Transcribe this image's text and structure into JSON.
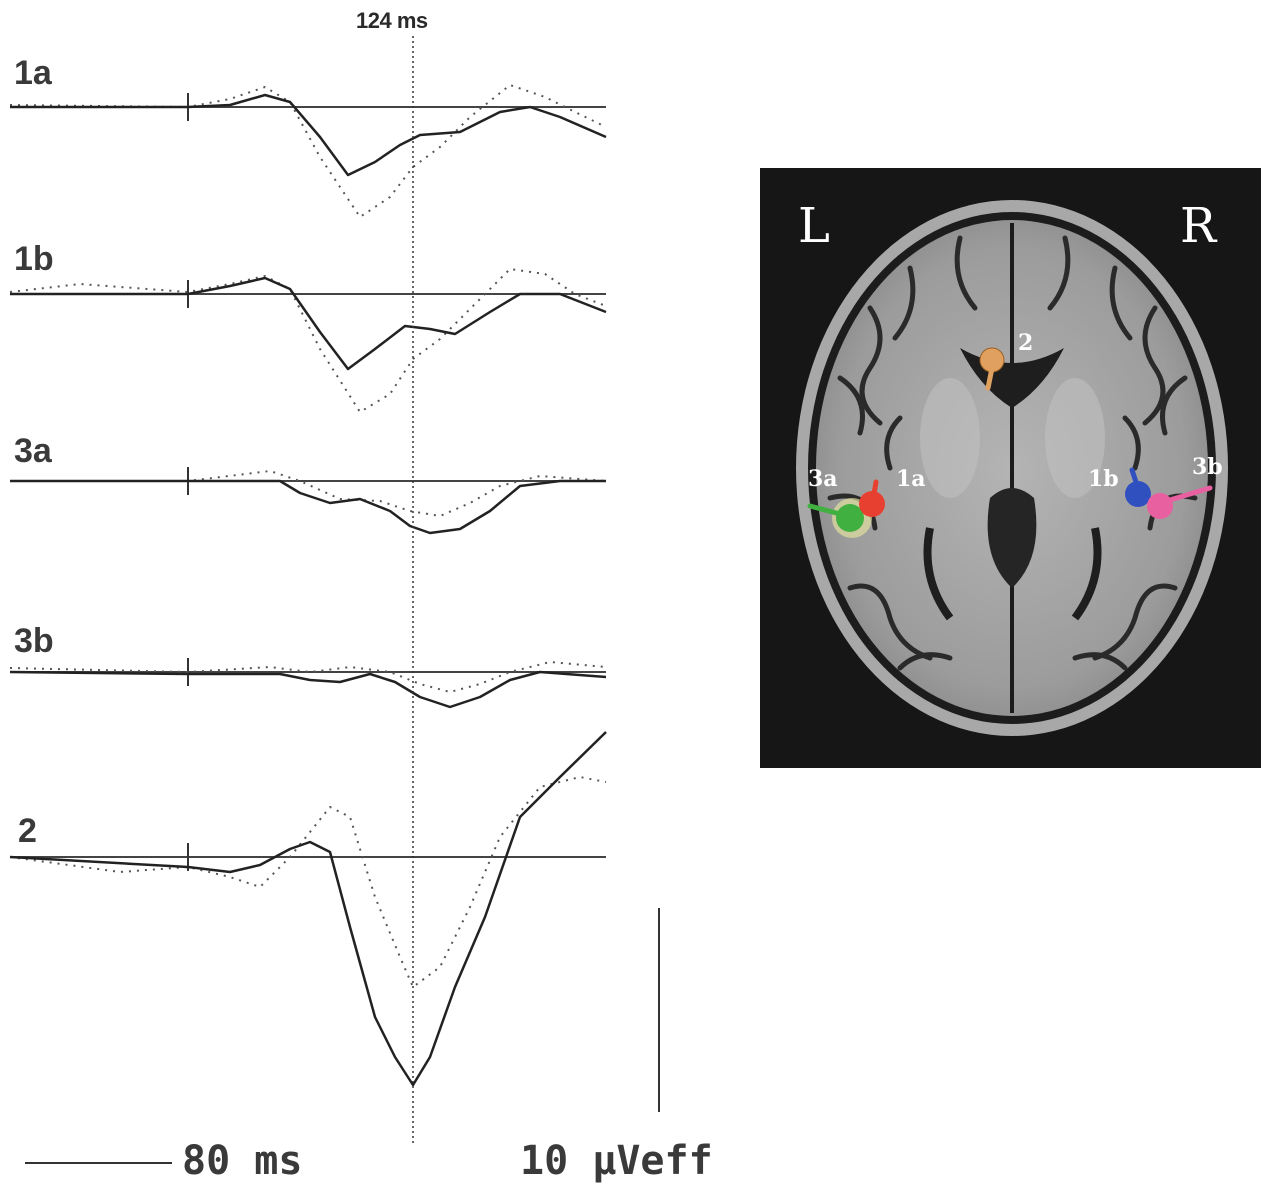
{
  "figure": {
    "latency_marker": "124 ms",
    "traces": [
      {
        "label": "1a"
      },
      {
        "label": "1b"
      },
      {
        "label": "3a"
      },
      {
        "label": "3b"
      },
      {
        "label": "2"
      }
    ],
    "scale_time": "80 ms",
    "scale_amplitude": "10 μVeff"
  },
  "brain": {
    "left_label": "L",
    "right_label": "R",
    "sources": [
      {
        "label": "2",
        "color": "#e0a060"
      },
      {
        "label": "3a",
        "color": "#40b040"
      },
      {
        "label": "1a",
        "color": "#e84030"
      },
      {
        "label": "1b",
        "color": "#3050c0"
      },
      {
        "label": "3b",
        "color": "#e860a0"
      }
    ]
  }
}
